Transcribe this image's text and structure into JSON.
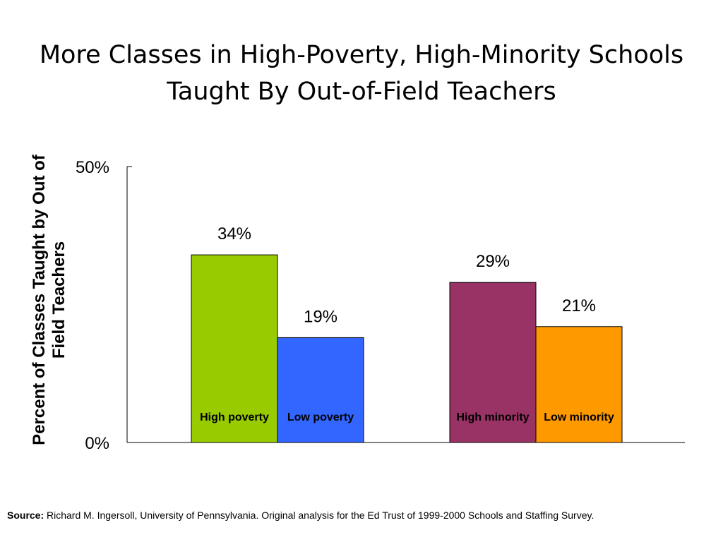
{
  "title_lines": [
    "More Classes in High-Poverty, High-Minority Schools",
    "Taught By Out-of-Field Teachers"
  ],
  "chart_data": {
    "type": "bar",
    "categories": [
      "High poverty",
      "Low poverty",
      "High minority",
      "Low minority"
    ],
    "values": [
      34,
      19,
      29,
      21
    ],
    "data_labels": [
      "34%",
      "19%",
      "29%",
      "21%"
    ],
    "colors": [
      "#99cc00",
      "#3366ff",
      "#993366",
      "#ff9900"
    ],
    "ylabel": "Percent of Classes Taught by Out of Field Teachers",
    "ylim": [
      0,
      50
    ],
    "y_tick_labels": [
      "0%",
      "50%"
    ],
    "y_ticks": [
      0,
      50
    ],
    "grid": false,
    "legend": "none"
  },
  "source": {
    "label": "Source:",
    "text": " Richard M. Ingersoll, University of Pennsylvania.  Original analysis for the Ed Trust of 1999-2000 Schools and Staffing Survey."
  }
}
